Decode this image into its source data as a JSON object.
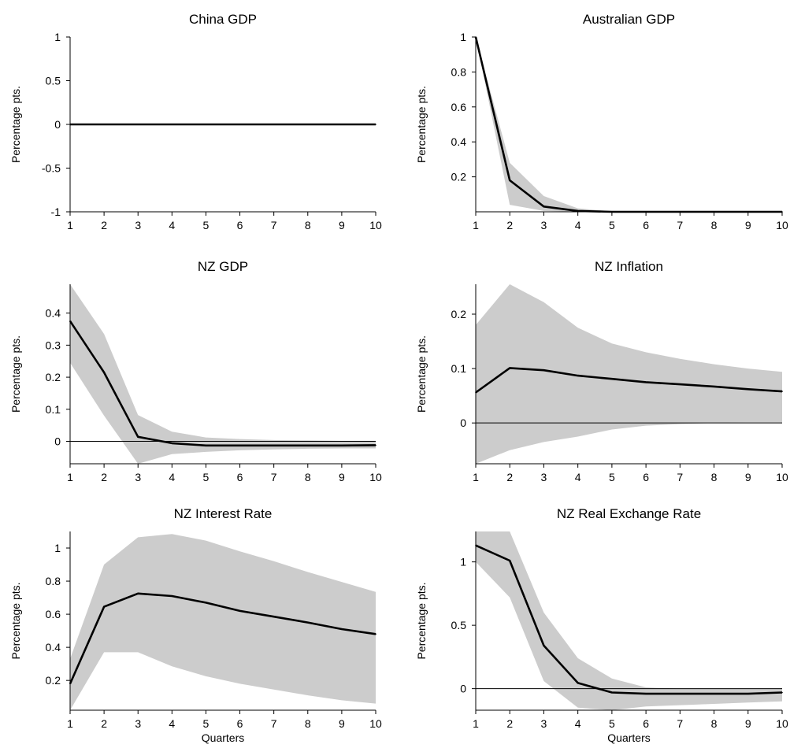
{
  "chart_data": [
    {
      "type": "line",
      "title": "China GDP",
      "ylabel": "Percentage pts.",
      "xlabel": "",
      "x": [
        1,
        2,
        3,
        4,
        5,
        6,
        7,
        8,
        9,
        10
      ],
      "ylim": [
        -1,
        1
      ],
      "yticks": [
        -1,
        -0.5,
        0,
        0.5,
        1
      ],
      "ytick_labels": [
        "-1",
        "-0.5",
        "0",
        "0.5",
        "1"
      ],
      "zero_line": false,
      "series": [
        {
          "values": [
            0,
            0,
            0,
            0,
            0,
            0,
            0,
            0,
            0,
            0
          ]
        }
      ],
      "band": null
    },
    {
      "type": "line",
      "title": "Australian GDP",
      "ylabel": "Percentage pts.",
      "xlabel": "",
      "x": [
        1,
        2,
        3,
        4,
        5,
        6,
        7,
        8,
        9,
        10
      ],
      "ylim": [
        0,
        1
      ],
      "yticks": [
        0.2,
        0.4,
        0.6,
        0.8,
        1
      ],
      "ytick_labels": [
        "0.2",
        "0.4",
        "0.6",
        "0.8",
        "1"
      ],
      "zero_line": false,
      "series": [
        {
          "values": [
            1.0,
            0.18,
            0.03,
            0.005,
            0.0,
            0.0,
            0.0,
            0.0,
            0.0,
            0.0
          ]
        }
      ],
      "band": {
        "lower": [
          1.0,
          0.04,
          0.005,
          0.0,
          0.0,
          0.0,
          0.0,
          0.0,
          0.0,
          0.0
        ],
        "upper": [
          1.0,
          0.28,
          0.09,
          0.02,
          0.003,
          0.0,
          0.0,
          0.0,
          0.0,
          0.0
        ]
      }
    },
    {
      "type": "line",
      "title": "NZ GDP",
      "ylabel": "Percentage pts.",
      "xlabel": "",
      "x": [
        1,
        2,
        3,
        4,
        5,
        6,
        7,
        8,
        9,
        10
      ],
      "ylim": [
        -0.07,
        0.49
      ],
      "yticks": [
        0,
        0.1,
        0.2,
        0.3,
        0.4
      ],
      "ytick_labels": [
        "0",
        "0.1",
        "0.2",
        "0.3",
        "0.4"
      ],
      "zero_line": true,
      "series": [
        {
          "values": [
            0.375,
            0.215,
            0.014,
            -0.006,
            -0.013,
            -0.013,
            -0.013,
            -0.013,
            -0.013,
            -0.012
          ]
        }
      ],
      "band": {
        "lower": [
          0.245,
          0.08,
          -0.07,
          -0.04,
          -0.033,
          -0.028,
          -0.025,
          -0.023,
          -0.022,
          -0.022
        ],
        "upper": [
          0.49,
          0.335,
          0.082,
          0.03,
          0.012,
          0.007,
          0.004,
          0.003,
          0.002,
          0.002
        ]
      }
    },
    {
      "type": "line",
      "title": "NZ Inflation",
      "ylabel": "Percentage pts.",
      "xlabel": "",
      "x": [
        1,
        2,
        3,
        4,
        5,
        6,
        7,
        8,
        9,
        10
      ],
      "ylim": [
        -0.075,
        0.255
      ],
      "yticks": [
        0,
        0.1,
        0.2
      ],
      "ytick_labels": [
        "0",
        "0.1",
        "0.2"
      ],
      "zero_line": true,
      "series": [
        {
          "values": [
            0.056,
            0.101,
            0.097,
            0.087,
            0.081,
            0.075,
            0.071,
            0.067,
            0.062,
            0.058
          ]
        }
      ],
      "band": {
        "lower": [
          -0.075,
          -0.05,
          -0.035,
          -0.025,
          -0.012,
          -0.005,
          -0.002,
          0.0,
          0.001,
          0.001
        ],
        "upper": [
          0.18,
          0.255,
          0.222,
          0.175,
          0.146,
          0.13,
          0.118,
          0.108,
          0.1,
          0.094
        ]
      }
    },
    {
      "type": "line",
      "title": "NZ Interest Rate",
      "ylabel": "Percentage pts.",
      "xlabel": "Quarters",
      "x": [
        1,
        2,
        3,
        4,
        5,
        6,
        7,
        8,
        9,
        10
      ],
      "ylim": [
        0.02,
        1.1
      ],
      "yticks": [
        0.2,
        0.4,
        0.6,
        0.8,
        1
      ],
      "ytick_labels": [
        "0.2",
        "0.4",
        "0.6",
        "0.8",
        "1"
      ],
      "zero_line": false,
      "series": [
        {
          "values": [
            0.18,
            0.645,
            0.725,
            0.71,
            0.67,
            0.62,
            0.585,
            0.55,
            0.51,
            0.48
          ]
        }
      ],
      "band": {
        "lower": [
          0.02,
          0.37,
          0.37,
          0.285,
          0.225,
          0.18,
          0.145,
          0.11,
          0.08,
          0.06
        ],
        "upper": [
          0.33,
          0.9,
          1.065,
          1.085,
          1.045,
          0.98,
          0.92,
          0.855,
          0.795,
          0.735
        ]
      }
    },
    {
      "type": "line",
      "title": "NZ Real Exchange Rate",
      "ylabel": "Percentage pts.",
      "xlabel": "Quarters",
      "x": [
        1,
        2,
        3,
        4,
        5,
        6,
        7,
        8,
        9,
        10
      ],
      "ylim": [
        -0.17,
        1.24
      ],
      "yticks": [
        0,
        0.5,
        1
      ],
      "ytick_labels": [
        "0",
        "0.5",
        "1"
      ],
      "zero_line": true,
      "series": [
        {
          "values": [
            1.13,
            1.01,
            0.34,
            0.045,
            -0.03,
            -0.04,
            -0.04,
            -0.04,
            -0.04,
            -0.03
          ]
        }
      ],
      "band": {
        "lower": [
          1.0,
          0.72,
          0.06,
          -0.15,
          -0.17,
          -0.14,
          -0.13,
          -0.12,
          -0.11,
          -0.1
        ],
        "upper": [
          1.24,
          1.24,
          0.6,
          0.24,
          0.08,
          0.01,
          0.0,
          0.0,
          0.0,
          0.0
        ]
      }
    }
  ],
  "style": {
    "line_color": "#000000",
    "band_color": "#cccccc",
    "zero_line_color": "#000000"
  }
}
